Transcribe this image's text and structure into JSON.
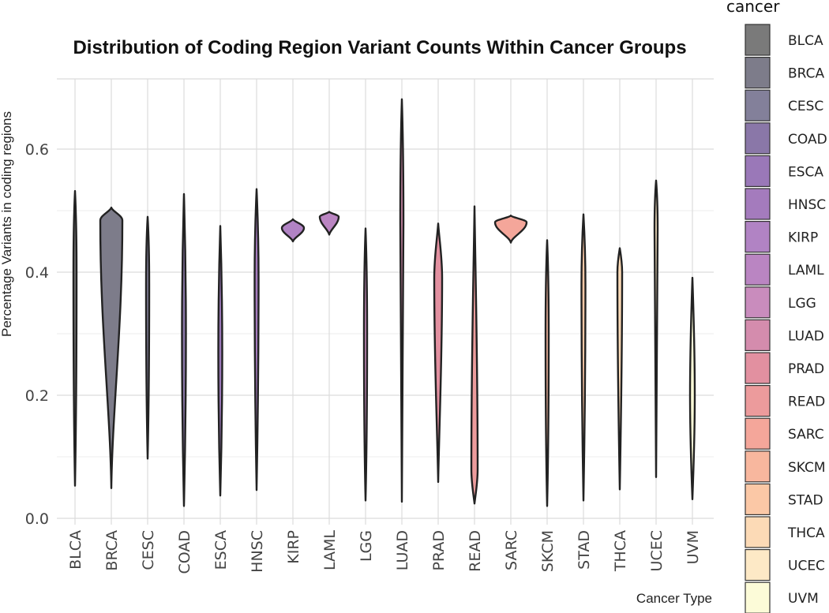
{
  "chart_data": {
    "type": "violin",
    "title": "Distribution of Coding Region Variant Counts Within Cancer Groups",
    "xlabel": "Cancer Type",
    "ylabel": "Percentage Variants in coding regions",
    "ylim": [
      0,
      0.7
    ],
    "yticks": [
      "0.0",
      "0.2",
      "0.4",
      "0.6"
    ],
    "legend_title": "cancer",
    "legend_position": "right",
    "grid": true,
    "categories": [
      "BLCA",
      "BRCA",
      "CESC",
      "COAD",
      "ESCA",
      "HNSC",
      "KIRP",
      "LAML",
      "LGG",
      "LUAD",
      "PRAD",
      "READ",
      "SARC",
      "SKCM",
      "STAD",
      "THCA",
      "UCEC",
      "UVM"
    ],
    "colors": [
      "#7a7a7a",
      "#7d7c8a",
      "#83809a",
      "#8a77a8",
      "#9a78b8",
      "#a47bbd",
      "#b183c4",
      "#ba85c2",
      "#c98cbd",
      "#d48cad",
      "#e290a0",
      "#ec9b9c",
      "#f4a69a",
      "#f8b79e",
      "#fbc8a6",
      "#fcdab6",
      "#fde9c6",
      "#fcfbd8"
    ],
    "series": [
      {
        "name": "BLCA",
        "min": 0.053,
        "max": 0.532,
        "peak": 0.4,
        "width": 4
      },
      {
        "name": "BRCA",
        "min": 0.049,
        "max": 0.505,
        "peak": 0.484,
        "width": 28
      },
      {
        "name": "CESC",
        "min": 0.097,
        "max": 0.49,
        "peak": 0.38,
        "width": 4
      },
      {
        "name": "COAD",
        "min": 0.02,
        "max": 0.527,
        "peak": 0.3,
        "width": 5
      },
      {
        "name": "ESCA",
        "min": 0.037,
        "max": 0.475,
        "peak": 0.27,
        "width": 5
      },
      {
        "name": "HNSC",
        "min": 0.046,
        "max": 0.535,
        "peak": 0.39,
        "width": 5
      },
      {
        "name": "KIRP",
        "min": 0.45,
        "max": 0.486,
        "peak": 0.472,
        "width": 28
      },
      {
        "name": "LAML",
        "min": 0.461,
        "max": 0.498,
        "peak": 0.49,
        "width": 24
      },
      {
        "name": "LGG",
        "min": 0.029,
        "max": 0.471,
        "peak": 0.3,
        "width": 4
      },
      {
        "name": "LUAD",
        "min": 0.027,
        "max": 0.681,
        "peak": 0.48,
        "width": 4
      },
      {
        "name": "PRAD",
        "min": 0.059,
        "max": 0.479,
        "peak": 0.39,
        "width": 10
      },
      {
        "name": "READ",
        "min": 0.024,
        "max": 0.507,
        "peak": 0.08,
        "width": 8
      },
      {
        "name": "SARC",
        "min": 0.448,
        "max": 0.492,
        "peak": 0.481,
        "width": 40
      },
      {
        "name": "SKCM",
        "min": 0.02,
        "max": 0.452,
        "peak": 0.3,
        "width": 4
      },
      {
        "name": "STAD",
        "min": 0.029,
        "max": 0.494,
        "peak": 0.38,
        "width": 5
      },
      {
        "name": "THCA",
        "min": 0.047,
        "max": 0.439,
        "peak": 0.4,
        "width": 6
      },
      {
        "name": "UCEC",
        "min": 0.067,
        "max": 0.549,
        "peak": 0.47,
        "width": 4
      },
      {
        "name": "UVM",
        "min": 0.031,
        "max": 0.391,
        "peak": 0.2,
        "width": 6
      }
    ]
  }
}
